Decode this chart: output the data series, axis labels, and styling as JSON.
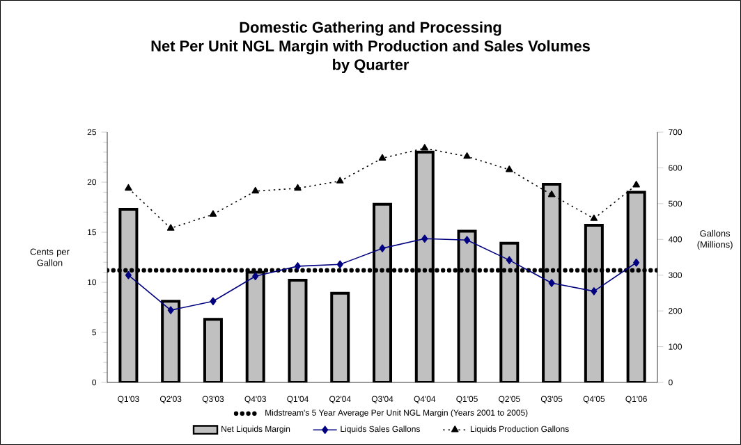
{
  "chart_data": {
    "type": "bar",
    "title": "Domestic Gathering and Processing\nNet Per Unit NGL Margin with Production and Sales Volumes\nby Quarter",
    "ylabel": "Cents per Gallon",
    "y2label": "Gallons (Millions)",
    "categories": [
      "Q1'03",
      "Q2'03",
      "Q3'03",
      "Q4'03",
      "Q1'04",
      "Q2'04",
      "Q3'04",
      "Q4'04",
      "Q1'05",
      "Q2'05",
      "Q3'05",
      "Q4'05",
      "Q1'06"
    ],
    "series": [
      {
        "name": "Net Liquids Margin",
        "color": "#c0c0c0",
        "values": [
          17.3,
          8.1,
          6.3,
          11.0,
          10.2,
          8.9,
          17.8,
          23.0,
          15.1,
          13.9,
          19.8,
          15.7,
          19.0
        ]
      },
      {
        "name": "Liquids Sales Gallons",
        "type": "line",
        "axis": "y2",
        "color": "#000080",
        "marker": "diamond",
        "line_style": "solid",
        "values": [
          300,
          202,
          227,
          297,
          325,
          330,
          375,
          402,
          398,
          342,
          278,
          255,
          335
        ]
      },
      {
        "name": "Liquids Production Gallons",
        "type": "line",
        "axis": "y2",
        "color": "#000000",
        "marker": "triangle",
        "line_style": "dotted",
        "values": [
          543,
          431,
          470,
          535,
          543,
          563,
          627,
          655,
          632,
          595,
          525,
          458,
          552
        ]
      }
    ],
    "ylim": [
      0,
      25
    ],
    "yticks": [
      0,
      5,
      10,
      15,
      20,
      25
    ],
    "y2lim": [
      0,
      700
    ],
    "y2ticks": [
      0,
      100,
      200,
      300,
      400,
      500,
      600,
      700
    ],
    "ref_lines": [
      {
        "axis": "y",
        "value": 11.2,
        "label": "Midstream's 5 Year Average Per Unit NGL Margin (Years 2001 to 2005)",
        "color": "#000000",
        "line_style": "dotted"
      }
    ],
    "legend": "bottom",
    "grid": false
  }
}
